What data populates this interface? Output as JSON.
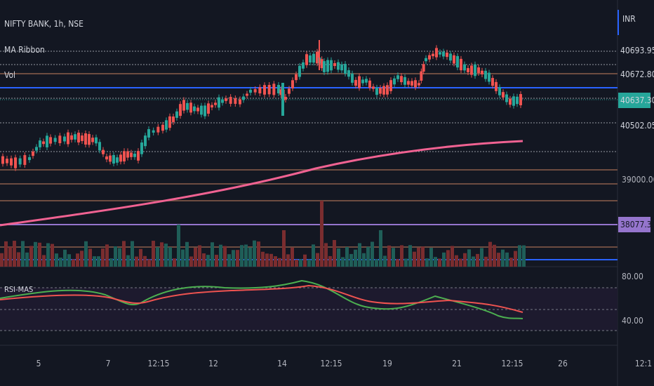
{
  "header": {
    "symbol": "NIFTY BANK, 1h, NSE",
    "indicator_ma": "MA Ribbon",
    "indicator_vol": "Vol",
    "indicator_rsi": "RSI-MAS"
  },
  "price_scale": {
    "currency": "INR",
    "labels": [
      {
        "text": "40693.95",
        "color": "#131722",
        "text_color": "#d1d4dc"
      },
      {
        "text": "40672.80",
        "color": "#131722",
        "text_color": "#d1d4dc"
      },
      {
        "text": "40637.30",
        "color": "#26a69a",
        "text_color": "#d1d4dc"
      },
      {
        "text": "40502.05",
        "color": "#131722",
        "text_color": "#d1d4dc"
      },
      {
        "text": "39000.00",
        "color": "transparent",
        "text_color": "#b2b5be"
      },
      {
        "text": "38077.30",
        "color": "#9575cd",
        "text_color": "#131722"
      }
    ],
    "rsi_labels": [
      "80.00",
      "40.00"
    ]
  },
  "time_axis": [
    "5",
    "7",
    "12:15",
    "12",
    "14",
    "12:15",
    "19",
    "21",
    "12:15",
    "26",
    "12:1"
  ],
  "colors": {
    "background": "#131722",
    "up": "#26a69a",
    "down": "#ef5350",
    "ma": "#f06292",
    "rsi": "#ef5350",
    "rsi_ma": "#4caf50",
    "hline_dotted": "#9598a1",
    "hline_brown": "#6d4c41",
    "hline_blue": "#2962ff",
    "hline_purple": "#9575cd"
  },
  "icons": {
    "scale_border": "blue-accent-bar"
  }
}
